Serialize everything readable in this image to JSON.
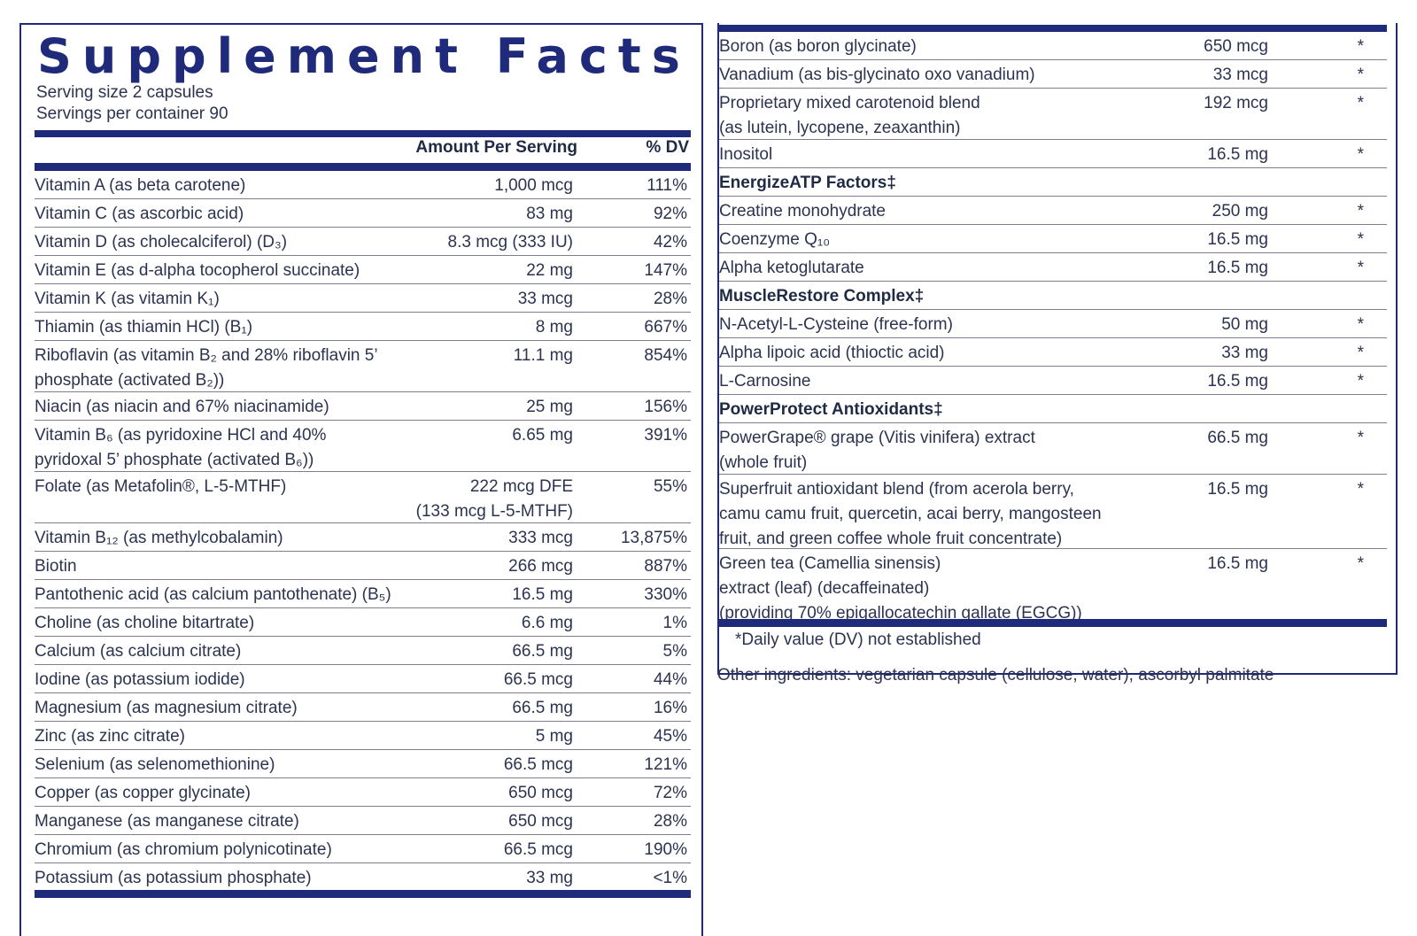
{
  "title": "Supplement Facts",
  "serving_size": "Serving size  2 capsules",
  "servings_per_container": "Servings per container  90",
  "header": {
    "amount": "Amount Per Serving",
    "dv": "% DV"
  },
  "left_rows": [
    {
      "name": "Vitamin A (as beta carotene)",
      "amount": "1,000 mcg",
      "dv": "111%"
    },
    {
      "name": "Vitamin C (as ascorbic acid)",
      "amount": "83 mg",
      "dv": "92%"
    },
    {
      "name": "Vitamin D (as cholecalciferol) (D₃)",
      "amount": "8.3 mcg (333 IU)",
      "dv": "42%"
    },
    {
      "name": "Vitamin E (as d-alpha tocopherol succinate)",
      "amount": "22 mg",
      "dv": "147%"
    },
    {
      "name": "Vitamin K (as vitamin K₁)",
      "amount": "33 mcg",
      "dv": "28%"
    },
    {
      "name": "Thiamin (as thiamin HCl) (B₁)",
      "amount": "8 mg",
      "dv": "667%"
    },
    {
      "name": "Riboflavin (as vitamin B₂ and 28% riboflavin 5’\nphosphate (activated B₂))",
      "amount": "11.1 mg",
      "dv": "854%"
    },
    {
      "name": "Niacin (as niacin and 67% niacinamide)",
      "amount": "25 mg",
      "dv": "156%"
    },
    {
      "name": "Vitamin B₆ (as pyridoxine HCl and 40%\npyridoxal 5’ phosphate (activated  B₆))",
      "amount": "6.65 mg",
      "dv": "391%"
    },
    {
      "name": "Folate (as Metafolin®, L-5-MTHF)",
      "amount": "222 mcg DFE\n(133 mcg L-5-MTHF)",
      "dv": "55%"
    },
    {
      "name": "Vitamin B₁₂ (as methylcobalamin)",
      "amount": "333 mcg",
      "dv": "13,875%"
    },
    {
      "name": "Biotin",
      "amount": "266 mcg",
      "dv": "887%"
    },
    {
      "name": "Pantothenic acid (as calcium pantothenate) (B₅)",
      "amount": "16.5 mg",
      "dv": "330%"
    },
    {
      "name": "Choline (as choline bitartrate)",
      "amount": "6.6 mg",
      "dv": "1%"
    },
    {
      "name": "Calcium (as calcium citrate)",
      "amount": "66.5 mg",
      "dv": "5%"
    },
    {
      "name": "Iodine (as potassium iodide)",
      "amount": "66.5 mcg",
      "dv": "44%"
    },
    {
      "name": "Magnesium (as magnesium citrate)",
      "amount": "66.5 mg",
      "dv": "16%"
    },
    {
      "name": "Zinc (as zinc citrate)",
      "amount": "5 mg",
      "dv": "45%"
    },
    {
      "name": "Selenium (as selenomethionine)",
      "amount": "66.5 mcg",
      "dv": "121%"
    },
    {
      "name": "Copper (as copper glycinate)",
      "amount": "650 mcg",
      "dv": "72%"
    },
    {
      "name": "Manganese (as manganese citrate)",
      "amount": "650 mcg",
      "dv": "28%"
    },
    {
      "name": "Chromium (as chromium polynicotinate)",
      "amount": "66.5 mcg",
      "dv": "190%"
    },
    {
      "name": "Potassium (as potassium phosphate)",
      "amount": "33 mg",
      "dv": "<1%"
    }
  ],
  "right_rows": [
    {
      "name": "Boron (as boron glycinate)",
      "amount": "650 mcg",
      "dv": "*"
    },
    {
      "name": "Vanadium (as bis-glycinato oxo vanadium)",
      "amount": "33 mcg",
      "dv": "*"
    },
    {
      "name": "Proprietary mixed carotenoid blend\n(as lutein, lycopene, zeaxanthin)",
      "amount": "192 mcg",
      "dv": "*"
    },
    {
      "name": "Inositol",
      "amount": "16.5 mg",
      "dv": "*"
    },
    {
      "name": "EnergizeATP Factors‡",
      "amount": "",
      "dv": ""
    },
    {
      "name": "Creatine monohydrate",
      "amount": "250 mg",
      "dv": "*"
    },
    {
      "name": "Coenzyme Q₁₀",
      "amount": "16.5 mg",
      "dv": "*"
    },
    {
      "name": "Alpha ketoglutarate",
      "amount": "16.5 mg",
      "dv": "*"
    },
    {
      "name": "MuscleRestore Complex‡",
      "amount": "",
      "dv": ""
    },
    {
      "name": "N-Acetyl-L-Cysteine (free-form)",
      "amount": "50 mg",
      "dv": "*"
    },
    {
      "name": "Alpha lipoic acid (thioctic acid)",
      "amount": "33 mg",
      "dv": "*"
    },
    {
      "name": "L-Carnosine",
      "amount": "16.5 mg",
      "dv": "*"
    },
    {
      "name": "PowerProtect Antioxidants‡",
      "amount": "",
      "dv": ""
    },
    {
      "name": "PowerGrape® grape (Vitis vinifera) extract\n(whole fruit)",
      "amount": "66.5 mg",
      "dv": "*"
    },
    {
      "name": "Superfruit antioxidant blend (from acerola berry,\ncamu camu fruit, quercetin, acai berry, mangosteen\nfruit, and green coffee whole fruit concentrate)",
      "amount": "16.5 mg",
      "dv": "*"
    },
    {
      "name": "Green tea (Camellia sinensis)\nextract (leaf) (decaffeinated)\n   (providing 70% epigallocatechin gallate (EGCG))",
      "amount": "16.5 mg",
      "dv": "*"
    }
  ],
  "dv_note": "*Daily value (DV) not established",
  "other_ingredients": "Other ingredients: vegetarian capsule (cellulose, water), ascorbyl palmitate"
}
